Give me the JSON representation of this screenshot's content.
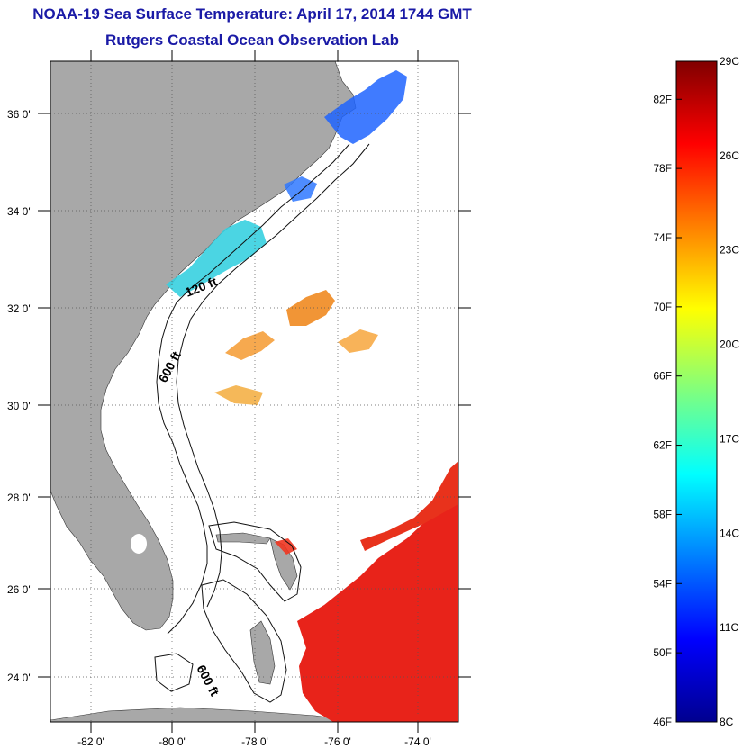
{
  "header": {
    "title": "NOAA-19 Sea Surface Temperature:  April 17, 2014 1744 GMT",
    "subtitle": "Rutgers Coastal Ocean Observation Lab"
  },
  "map": {
    "lon_range": [
      -83,
      -73
    ],
    "lat_range": [
      23,
      37
    ],
    "lat_ticks": [
      {
        "value": 36,
        "label": "36 0'"
      },
      {
        "value": 34,
        "label": "34 0'"
      },
      {
        "value": 32,
        "label": "32 0'"
      },
      {
        "value": 30,
        "label": "30 0'"
      },
      {
        "value": 28,
        "label": "28 0'"
      },
      {
        "value": 26,
        "label": "26 0'"
      },
      {
        "value": 24,
        "label": "24 0'"
      }
    ],
    "lon_ticks": [
      {
        "value": -82,
        "label": "-82 0'"
      },
      {
        "value": -80,
        "label": "-80 0'"
      },
      {
        "value": -78,
        "label": "-78 0'"
      },
      {
        "value": -76,
        "label": "-76 0'"
      },
      {
        "value": -74,
        "label": "-74 0'"
      }
    ],
    "contour_labels": {
      "isobath_120": "120 ft",
      "isobath_600_north": "600 ft",
      "isobath_600_south": "600 ft"
    },
    "colors": {
      "land": "#a8a8a8",
      "ocean": "#ffffff",
      "title": "#1a1aa6"
    }
  },
  "colorbar": {
    "fahrenheit": [
      "82F",
      "78F",
      "74F",
      "70F",
      "66F",
      "62F",
      "58F",
      "54F",
      "50F",
      "46F"
    ],
    "celsius": [
      "29C",
      "26C",
      "23C",
      "20C",
      "17C",
      "14C",
      "11C",
      "8C"
    ],
    "range_c": [
      8,
      29
    ]
  }
}
